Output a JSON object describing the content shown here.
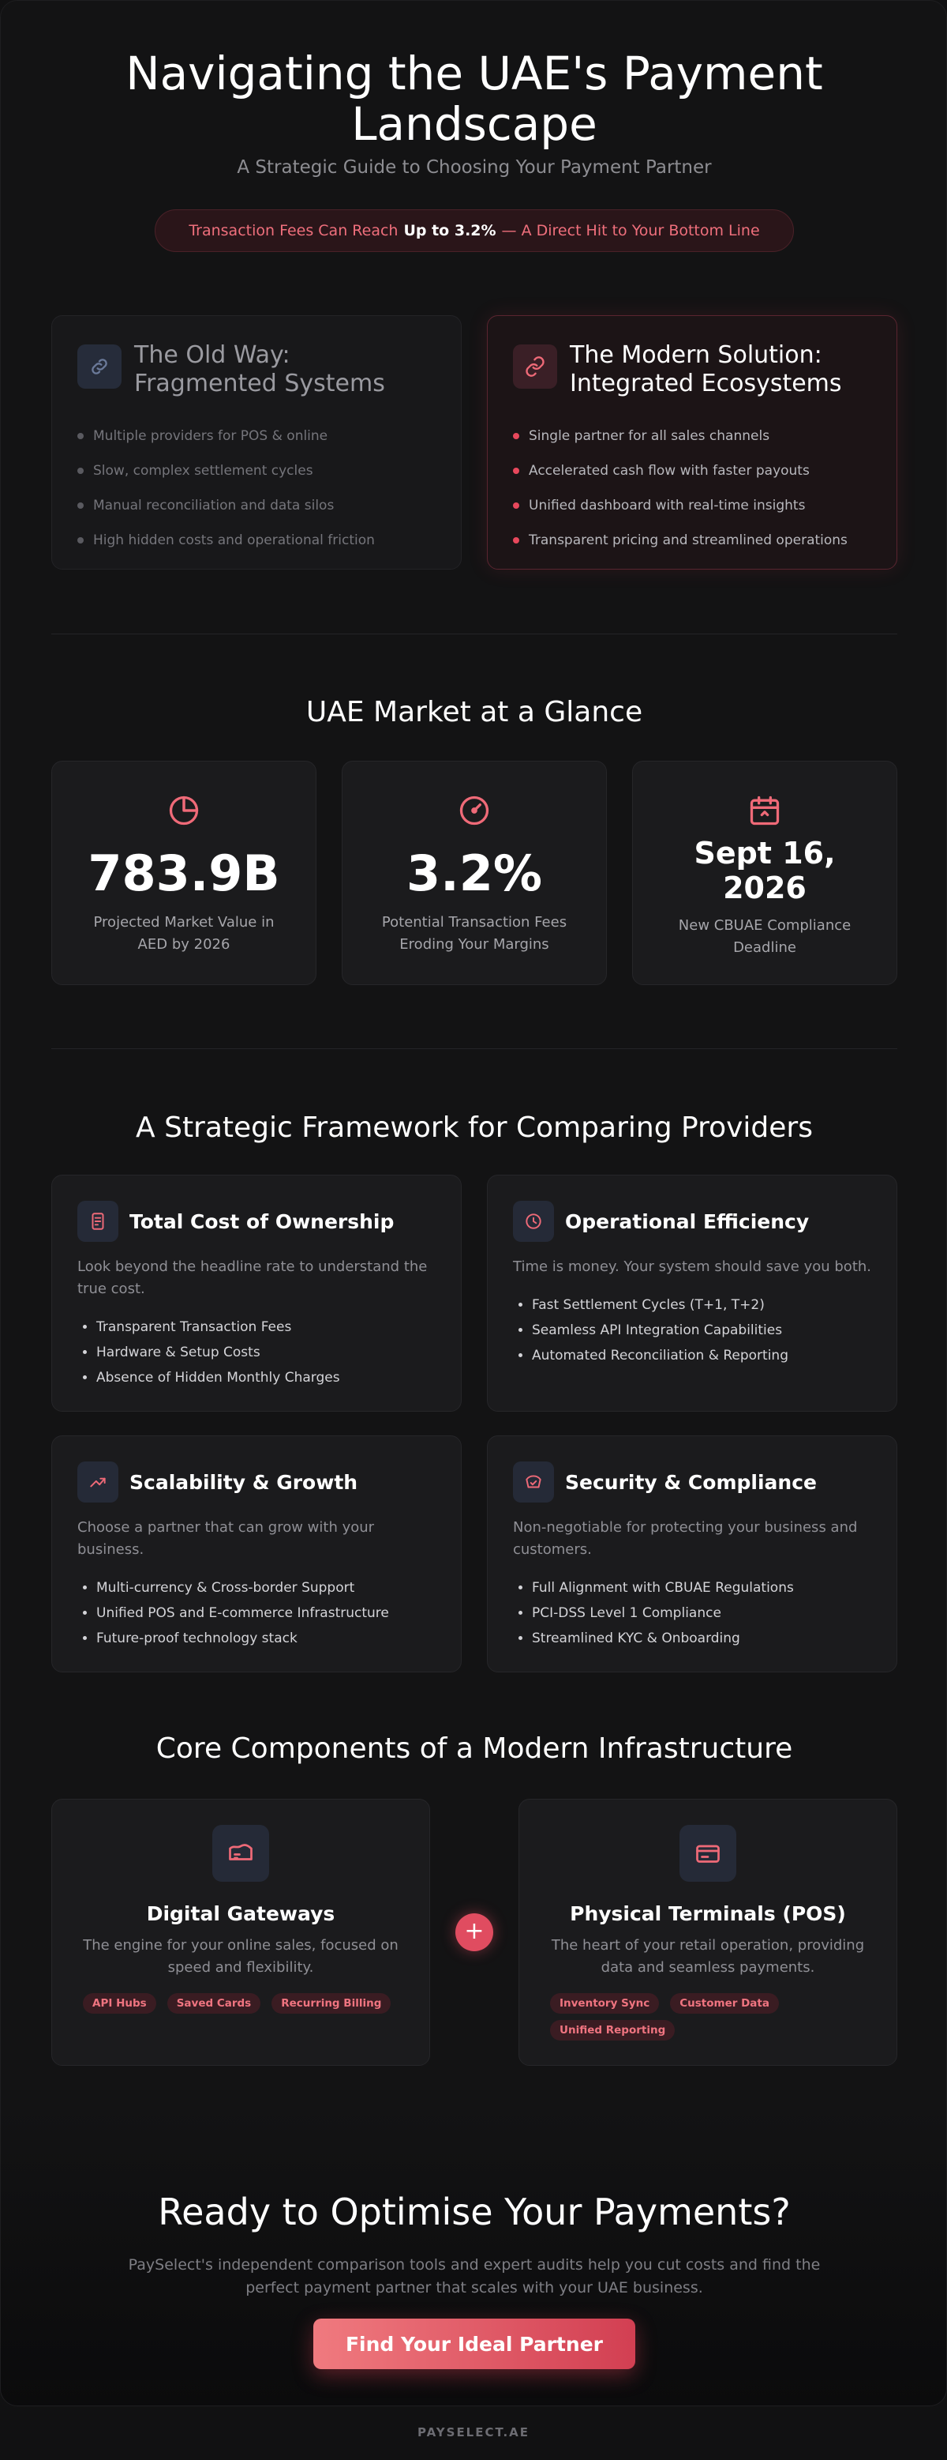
{
  "hero": {
    "title_line1": "Navigating the UAE's Payment",
    "title_line2": "Landscape",
    "subtitle": "A Strategic Guide to Choosing Your Payment Partner",
    "fee_prefix": "Transaction Fees Can Reach",
    "fee_highlight": "Up to 3.2%",
    "fee_suffix": "— A Direct Hit to Your Bottom Line"
  },
  "comparison": {
    "old": {
      "title": "The Old Way: Fragmented Systems",
      "icon": "broken-link-icon",
      "items": [
        "Multiple providers for POS & online",
        "Slow, complex settlement cycles",
        "Manual reconciliation and data silos",
        "High hidden costs and operational friction"
      ]
    },
    "modern": {
      "title": "The Modern Solution: Integrated Ecosystems",
      "icon": "link-icon",
      "items": [
        "Single partner for all sales channels",
        "Accelerated cash flow with faster payouts",
        "Unified dashboard with real-time insights",
        "Transparent pricing and streamlined operations"
      ]
    }
  },
  "market": {
    "title": "UAE Market at a Glance",
    "stats": [
      {
        "icon": "pie-chart-icon",
        "value": "783.9B",
        "label": "Projected Market Value in AED by 2026"
      },
      {
        "icon": "gauge-icon",
        "value": "3.2%",
        "label": "Potential Transaction Fees Eroding Your Margins"
      },
      {
        "icon": "calendar-icon",
        "value_line1": "Sept 16,",
        "value_line2": "2026",
        "label": "New CBUAE Compliance Deadline"
      }
    ]
  },
  "framework": {
    "title": "A Strategic Framework for Comparing Providers",
    "cards": [
      {
        "icon": "receipt-icon",
        "title": "Total Cost of Ownership",
        "desc": "Look beyond the headline rate to understand the true cost.",
        "items": [
          "Transparent Transaction Fees",
          "Hardware & Setup Costs",
          "Absence of Hidden Monthly Charges"
        ]
      },
      {
        "icon": "clock-icon",
        "title": "Operational Efficiency",
        "desc": "Time is money. Your system should save you both.",
        "items": [
          "Fast Settlement Cycles (T+1, T+2)",
          "Seamless API Integration Capabilities",
          "Automated Reconciliation & Reporting"
        ]
      },
      {
        "icon": "trend-up-icon",
        "title": "Scalability & Growth",
        "desc": "Choose a partner that can grow with your business.",
        "items": [
          "Multi-currency & Cross-border Support",
          "Unified POS and E-commerce Infrastructure",
          "Future-proof technology stack"
        ]
      },
      {
        "icon": "shield-icon",
        "title": "Security & Compliance",
        "desc": "Non-negotiable for protecting your business and customers.",
        "items": [
          "Full Alignment with CBUAE Regulations",
          "PCI-DSS Level 1 Compliance",
          "Streamlined KYC & Onboarding"
        ]
      }
    ]
  },
  "core": {
    "title": "Core Components of a Modern Infrastructure",
    "plus": "+",
    "cards": [
      {
        "icon": "gateway-icon",
        "title": "Digital Gateways",
        "desc": "The engine for your online sales, focused on speed and flexibility.",
        "tags": [
          "API Hubs",
          "Saved Cards",
          "Recurring Billing"
        ]
      },
      {
        "icon": "terminal-card-icon",
        "title": "Physical Terminals (POS)",
        "desc": "The heart of your retail operation, providing data and seamless payments.",
        "tags": [
          "Inventory Sync",
          "Customer Data",
          "Unified Reporting"
        ]
      }
    ]
  },
  "cta": {
    "title": "Ready to Optimise Your Payments?",
    "desc": "PaySelect's independent comparison tools and expert audits help you cut costs and find the perfect payment partner that scales with your UAE business.",
    "button": "Find Your Ideal Partner"
  },
  "footer": {
    "brand": "PAYSELECT.AE"
  },
  "colors": {
    "accent": "#e8485c",
    "background": "#131314",
    "card": "#1b1b1d"
  }
}
